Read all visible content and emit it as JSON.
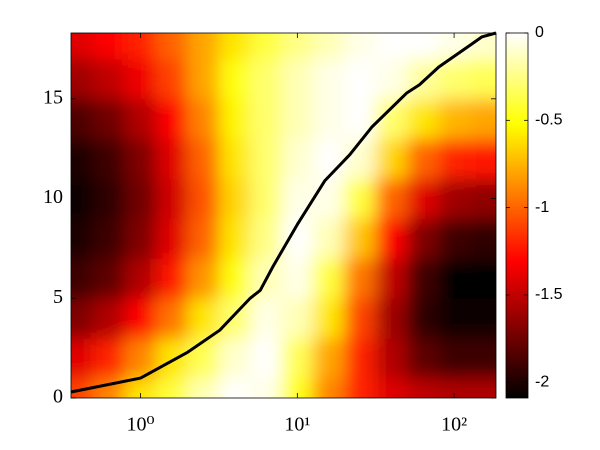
{
  "chart_data": {
    "type": "heatmap",
    "xscale": "log",
    "colormap": "hot",
    "xlim": [
      0.36,
      185
    ],
    "ylim": [
      0,
      18.3
    ],
    "xticks": [
      {
        "value": 1,
        "label": "10⁰"
      },
      {
        "value": 10,
        "label": "10¹"
      },
      {
        "value": 100,
        "label": "10²"
      }
    ],
    "yticks": [
      0,
      5,
      10,
      15
    ],
    "clim": [
      -2.09,
      0
    ],
    "cticks": [
      0,
      -0.5,
      -1,
      -1.5,
      -2
    ],
    "x": [
      0.398,
      0.631,
      1,
      1.585,
      2.512,
      3.981,
      6.31,
      10,
      15.85,
      25.12,
      39.81,
      63.1,
      100,
      158.5
    ],
    "y": [
      0,
      2,
      4,
      6,
      8,
      10,
      12,
      14,
      16,
      18
    ],
    "z": [
      [
        -1.1,
        -0.9,
        -0.6,
        -0.4,
        -0.15,
        0,
        -0.05,
        -0.5,
        -0.9,
        -1.2,
        -1.4,
        -1.5,
        -1.55,
        -1.55
      ],
      [
        -1.4,
        -1.2,
        -0.9,
        -0.6,
        -0.35,
        -0.1,
        0,
        -0.35,
        -0.8,
        -1.2,
        -1.55,
        -1.8,
        -1.9,
        -1.9
      ],
      [
        -1.7,
        -1.55,
        -1.3,
        -0.95,
        -0.6,
        -0.3,
        -0.05,
        -0.15,
        -0.6,
        -1.1,
        -1.6,
        -1.95,
        -2.05,
        -2.05
      ],
      [
        -1.9,
        -1.8,
        -1.55,
        -1.25,
        -0.85,
        -0.5,
        -0.15,
        -0.05,
        -0.4,
        -0.95,
        -1.5,
        -1.9,
        -2.08,
        -2.09
      ],
      [
        -2.0,
        -1.9,
        -1.7,
        -1.4,
        -1.0,
        -0.6,
        -0.25,
        0,
        -0.15,
        -0.7,
        -1.3,
        -1.7,
        -1.9,
        -1.95
      ],
      [
        -2.05,
        -1.95,
        -1.75,
        -1.45,
        -1.05,
        -0.65,
        -0.3,
        -0.05,
        -0.05,
        -0.4,
        -1.0,
        -1.4,
        -1.6,
        -1.65
      ],
      [
        -2.0,
        -1.9,
        -1.7,
        -1.4,
        -1.0,
        -0.6,
        -0.3,
        -0.1,
        0,
        -0.1,
        -0.65,
        -1.0,
        -1.2,
        -1.25
      ],
      [
        -1.85,
        -1.75,
        -1.55,
        -1.3,
        -0.9,
        -0.55,
        -0.3,
        -0.15,
        -0.05,
        0,
        -0.3,
        -0.6,
        -0.75,
        -0.8
      ],
      [
        -1.6,
        -1.5,
        -1.35,
        -1.1,
        -0.8,
        -0.5,
        -0.3,
        -0.15,
        -0.05,
        0,
        -0.05,
        -0.2,
        -0.3,
        -0.35
      ],
      [
        -1.4,
        -1.3,
        -1.2,
        -1.0,
        -0.8,
        -0.6,
        -0.4,
        -0.25,
        -0.15,
        -0.05,
        0,
        0,
        -0.05,
        -0.1
      ]
    ],
    "curve": {
      "color": "#000000",
      "x": [
        0.36,
        1,
        2,
        3.2,
        5,
        5.8,
        7,
        10,
        15,
        21.6,
        30,
        50,
        60,
        80,
        127,
        150,
        185
      ],
      "y": [
        0.3,
        1.0,
        2.3,
        3.4,
        5.0,
        5.4,
        6.6,
        8.7,
        10.9,
        12.2,
        13.6,
        15.3,
        15.7,
        16.6,
        17.7,
        18.1,
        18.3
      ]
    }
  }
}
